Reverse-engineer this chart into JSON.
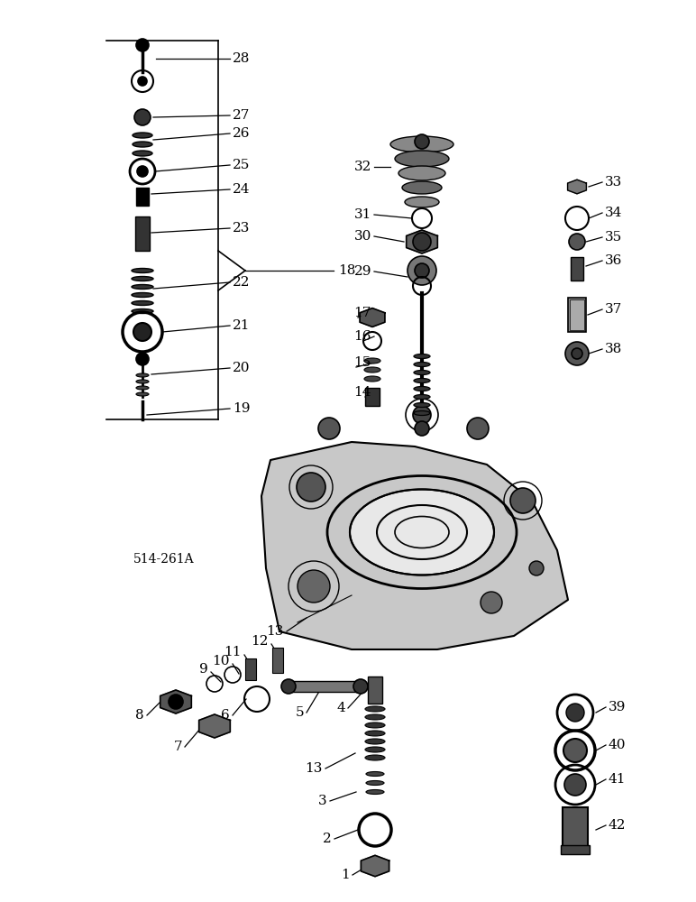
{
  "title": "514-261A",
  "bg_color": "#ffffff",
  "fig_width": 7.72,
  "fig_height": 10.0,
  "dpi": 100
}
